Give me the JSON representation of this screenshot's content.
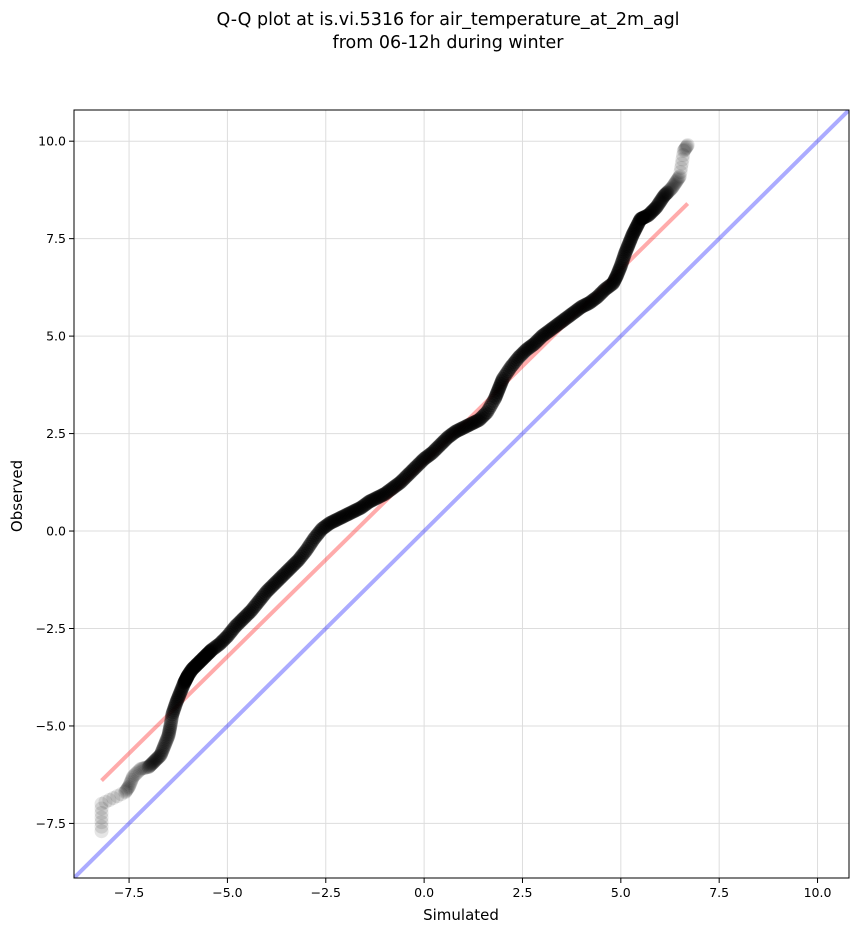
{
  "chart_data": {
    "type": "scatter",
    "title_lines": [
      "Q-Q plot at is.vi.5316 for air_temperature_at_2m_agl",
      "from 06-12h during winter"
    ],
    "xlabel": "Simulated",
    "ylabel": "Observed",
    "xlim": [
      -8.9,
      10.8
    ],
    "ylim": [
      -8.9,
      10.8
    ],
    "x_ticks": [
      -7.5,
      -5.0,
      -2.5,
      0.0,
      2.5,
      5.0,
      7.5,
      10.0
    ],
    "y_ticks": [
      -7.5,
      -5.0,
      -2.5,
      0.0,
      2.5,
      5.0,
      7.5,
      10.0
    ],
    "x_tick_labels": [
      "−7.5",
      "−5.0",
      "−2.5",
      "0.0",
      "2.5",
      "5.0",
      "7.5",
      "10.0"
    ],
    "y_tick_labels": [
      "−7.5",
      "−5.0",
      "−2.5",
      "0.0",
      "2.5",
      "5.0",
      "7.5",
      "10.0"
    ],
    "grid": true,
    "legend": "none",
    "colors": {
      "points": "#000000",
      "fit_line": "#ff0000",
      "identity_line": "#0000ff",
      "grid": "#dddddd"
    },
    "identity_line": {
      "x": [
        -8.9,
        10.8
      ],
      "y": [
        -8.9,
        10.8
      ]
    },
    "fit_line": {
      "x": [
        -8.2,
        6.7
      ],
      "y": [
        -6.4,
        8.4
      ]
    },
    "series": [
      {
        "x": [
          -8.2,
          -8.2,
          -7.6,
          -7.5,
          -7.4,
          -7.2,
          -7.0,
          -6.85,
          -6.7,
          -6.6,
          -6.5,
          -6.45,
          -6.4,
          -6.3,
          -6.2,
          -6.1,
          -6.05,
          -6.0,
          -5.9,
          -5.8,
          -5.7,
          -5.6,
          -5.5,
          -5.4,
          -5.2,
          -5.0,
          -4.8,
          -4.6,
          -4.4,
          -4.2,
          -4.0,
          -3.8,
          -3.6,
          -3.4,
          -3.2,
          -3.0,
          -2.8,
          -2.6,
          -2.4,
          -2.2,
          -2.0,
          -1.8,
          -1.6,
          -1.4,
          -1.2,
          -1.0,
          -0.8,
          -0.6,
          -0.4,
          -0.2,
          0.0,
          0.2,
          0.4,
          0.6,
          0.8,
          1.0,
          1.2,
          1.4,
          1.6,
          1.8,
          1.9,
          2.0,
          2.2,
          2.4,
          2.6,
          2.8,
          3.0,
          3.2,
          3.4,
          3.6,
          3.8,
          4.0,
          4.2,
          4.4,
          4.6,
          4.8,
          4.9,
          5.0,
          5.1,
          5.2,
          5.3,
          5.4,
          5.5,
          5.6,
          5.7,
          5.8,
          5.9,
          6.0,
          6.1,
          6.2,
          6.3,
          6.4,
          6.5,
          6.6,
          6.7
        ],
        "y": [
          -7.7,
          -7.0,
          -6.7,
          -6.55,
          -6.3,
          -6.1,
          -6.05,
          -5.9,
          -5.75,
          -5.5,
          -5.25,
          -5.0,
          -4.7,
          -4.4,
          -4.15,
          -3.9,
          -3.8,
          -3.7,
          -3.55,
          -3.45,
          -3.35,
          -3.25,
          -3.15,
          -3.05,
          -2.9,
          -2.7,
          -2.45,
          -2.25,
          -2.05,
          -1.8,
          -1.55,
          -1.35,
          -1.15,
          -0.95,
          -0.75,
          -0.5,
          -0.2,
          0.05,
          0.2,
          0.3,
          0.4,
          0.5,
          0.6,
          0.75,
          0.85,
          0.95,
          1.1,
          1.25,
          1.45,
          1.65,
          1.85,
          2.0,
          2.2,
          2.4,
          2.55,
          2.65,
          2.75,
          2.85,
          3.05,
          3.4,
          3.65,
          3.9,
          4.2,
          4.45,
          4.65,
          4.8,
          5.0,
          5.15,
          5.3,
          5.45,
          5.6,
          5.75,
          5.85,
          6.0,
          6.2,
          6.35,
          6.55,
          6.8,
          7.1,
          7.35,
          7.6,
          7.8,
          8.0,
          8.05,
          8.1,
          8.2,
          8.3,
          8.45,
          8.6,
          8.7,
          8.8,
          8.95,
          9.1,
          9.75,
          9.9
        ]
      }
    ]
  }
}
